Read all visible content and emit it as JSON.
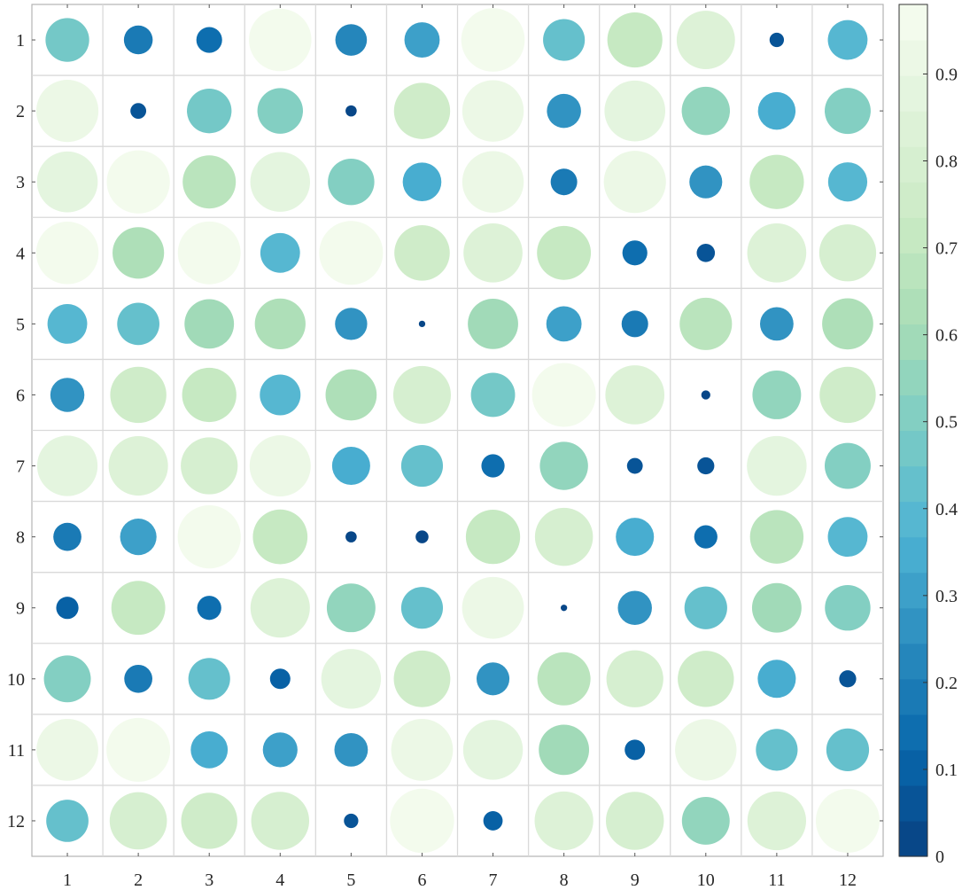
{
  "chart_data": {
    "type": "bubble-heatmap",
    "title": "",
    "xlabel": "",
    "ylabel": "",
    "x_categories": [
      "1",
      "2",
      "3",
      "4",
      "5",
      "6",
      "7",
      "8",
      "9",
      "10",
      "11",
      "12"
    ],
    "y_categories": [
      "1",
      "2",
      "3",
      "4",
      "5",
      "6",
      "7",
      "8",
      "9",
      "10",
      "11",
      "12"
    ],
    "values": [
      [
        0.46,
        0.2,
        0.16,
        0.94,
        0.24,
        0.3,
        0.97,
        0.42,
        0.73,
        0.82,
        0.05,
        0.38
      ],
      [
        0.93,
        0.06,
        0.48,
        0.5,
        0.03,
        0.76,
        0.91,
        0.28,
        0.89,
        0.56,
        0.34,
        0.51
      ],
      [
        0.89,
        0.96,
        0.68,
        0.86,
        0.52,
        0.36,
        0.91,
        0.17,
        0.93,
        0.26,
        0.71,
        0.37
      ],
      [
        0.94,
        0.64,
        0.95,
        0.38,
        0.98,
        0.74,
        0.84,
        0.7,
        0.15,
        0.08,
        0.84,
        0.78
      ],
      [
        0.38,
        0.43,
        0.59,
        0.62,
        0.25,
        0.01,
        0.61,
        0.3,
        0.17,
        0.66,
        0.27,
        0.63
      ],
      [
        0.28,
        0.76,
        0.71,
        0.4,
        0.63,
        0.8,
        0.47,
        0.98,
        0.84,
        0.02,
        0.57,
        0.76
      ],
      [
        0.88,
        0.85,
        0.78,
        0.9,
        0.35,
        0.42,
        0.13,
        0.56,
        0.06,
        0.07,
        0.86,
        0.51
      ],
      [
        0.19,
        0.32,
        0.96,
        0.72,
        0.03,
        0.04,
        0.71,
        0.81,
        0.35,
        0.13,
        0.69,
        0.38
      ],
      [
        0.12,
        0.7,
        0.14,
        0.85,
        0.57,
        0.42,
        0.92,
        0.01,
        0.28,
        0.44,
        0.59,
        0.5
      ],
      [
        0.53,
        0.19,
        0.42,
        0.1,
        0.86,
        0.77,
        0.26,
        0.68,
        0.78,
        0.76,
        0.35,
        0.07
      ],
      [
        0.92,
        0.98,
        0.33,
        0.29,
        0.27,
        0.92,
        0.86,
        0.61,
        0.1,
        0.91,
        0.42,
        0.44
      ],
      [
        0.43,
        0.79,
        0.76,
        0.81,
        0.05,
        0.99,
        0.09,
        0.83,
        0.81,
        0.55,
        0.83,
        0.98
      ]
    ],
    "colorbar": {
      "min": 0,
      "max": 0.98,
      "ticks": [
        "0",
        "0.1",
        "0.2",
        "0.3",
        "0.4",
        "0.5",
        "0.6",
        "0.7",
        "0.8",
        "0.9"
      ],
      "tick_values": [
        0,
        0.1,
        0.2,
        0.3,
        0.4,
        0.5,
        0.6,
        0.7,
        0.8,
        0.9
      ],
      "colormap": "GnBu (reversed: dark blue at 0, near-white green at max)",
      "levels": 24
    },
    "marker": "circle, area proportional to value",
    "grid": true,
    "legend": "colorbar-right",
    "colors": {
      "stops": [
        "#084081",
        "#0868ac",
        "#2b8cbe",
        "#4eb3d3",
        "#7bccc4",
        "#a8ddb5",
        "#ccebc5",
        "#e0f3db",
        "#f7fcf0"
      ],
      "grid": "#d9d9d9",
      "axis": "#b3b3b3"
    }
  }
}
